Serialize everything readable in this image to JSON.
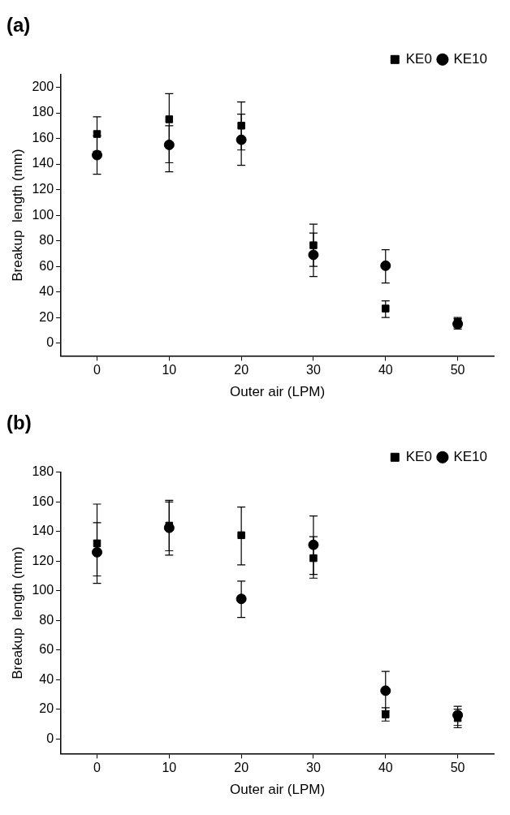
{
  "chart_data": [
    {
      "type": "scatter",
      "title": "(a)",
      "xlabel": "Outer air (LPM)",
      "ylabel": "Breakup  length (mm)",
      "x": [
        0,
        10,
        20,
        30,
        40,
        50
      ],
      "xlim": [
        -5,
        55
      ],
      "ylim": [
        -10,
        210
      ],
      "xticks": [
        0,
        10,
        20,
        30,
        40,
        50
      ],
      "yticks": [
        0,
        20,
        40,
        60,
        80,
        100,
        120,
        140,
        160,
        180,
        200
      ],
      "grid": false,
      "legend": "top right",
      "series": [
        {
          "name": "KE0",
          "color": "#000000",
          "marker": "square",
          "values": [
            163.5,
            175,
            170,
            76.5,
            27,
            16
          ],
          "errors": [
            [
              150,
              177
            ],
            [
              134,
              195
            ],
            [
              151,
              188.5
            ],
            [
              60,
              93
            ],
            [
              20,
              33
            ],
            [
              12,
              20
            ]
          ]
        },
        {
          "name": "KE10",
          "color": "#000000",
          "marker": "circle",
          "values": [
            147,
            155,
            159,
            69,
            60.5,
            15
          ],
          "errors": [
            [
              132,
              162
            ],
            [
              141,
              170
            ],
            [
              139,
              179
            ],
            [
              52,
              86
            ],
            [
              47,
              73
            ],
            [
              11,
              19
            ]
          ]
        }
      ]
    },
    {
      "type": "scatter",
      "title": "(b)",
      "xlabel": "Outer air (LPM)",
      "ylabel": "Breakup  length (mm)",
      "x": [
        0,
        10,
        20,
        30,
        40,
        50
      ],
      "xlim": [
        -5,
        55
      ],
      "ylim": [
        -10,
        180
      ],
      "xticks": [
        0,
        10,
        20,
        30,
        40,
        50
      ],
      "yticks": [
        0,
        20,
        40,
        60,
        80,
        100,
        120,
        140,
        160,
        180
      ],
      "grid": false,
      "legend": "top right",
      "series": [
        {
          "name": "KE0",
          "color": "#000000",
          "marker": "square",
          "values": [
            132,
            144,
            137.5,
            122,
            16.5,
            14
          ],
          "errors": [
            [
              105,
              158.5
            ],
            [
              127,
              161
            ],
            [
              117.5,
              156.5
            ],
            [
              108.5,
              136.5
            ],
            [
              12,
              21
            ],
            [
              7.5,
              22
            ]
          ]
        },
        {
          "name": "KE10",
          "color": "#000000",
          "marker": "circle",
          "values": [
            126,
            142.5,
            94.5,
            131,
            32.5,
            16
          ],
          "errors": [
            [
              110,
              146
            ],
            [
              124,
              160
            ],
            [
              82,
              106.5
            ],
            [
              111,
              150.5
            ],
            [
              19,
              45.5
            ],
            [
              9,
              20
            ]
          ]
        }
      ]
    }
  ]
}
